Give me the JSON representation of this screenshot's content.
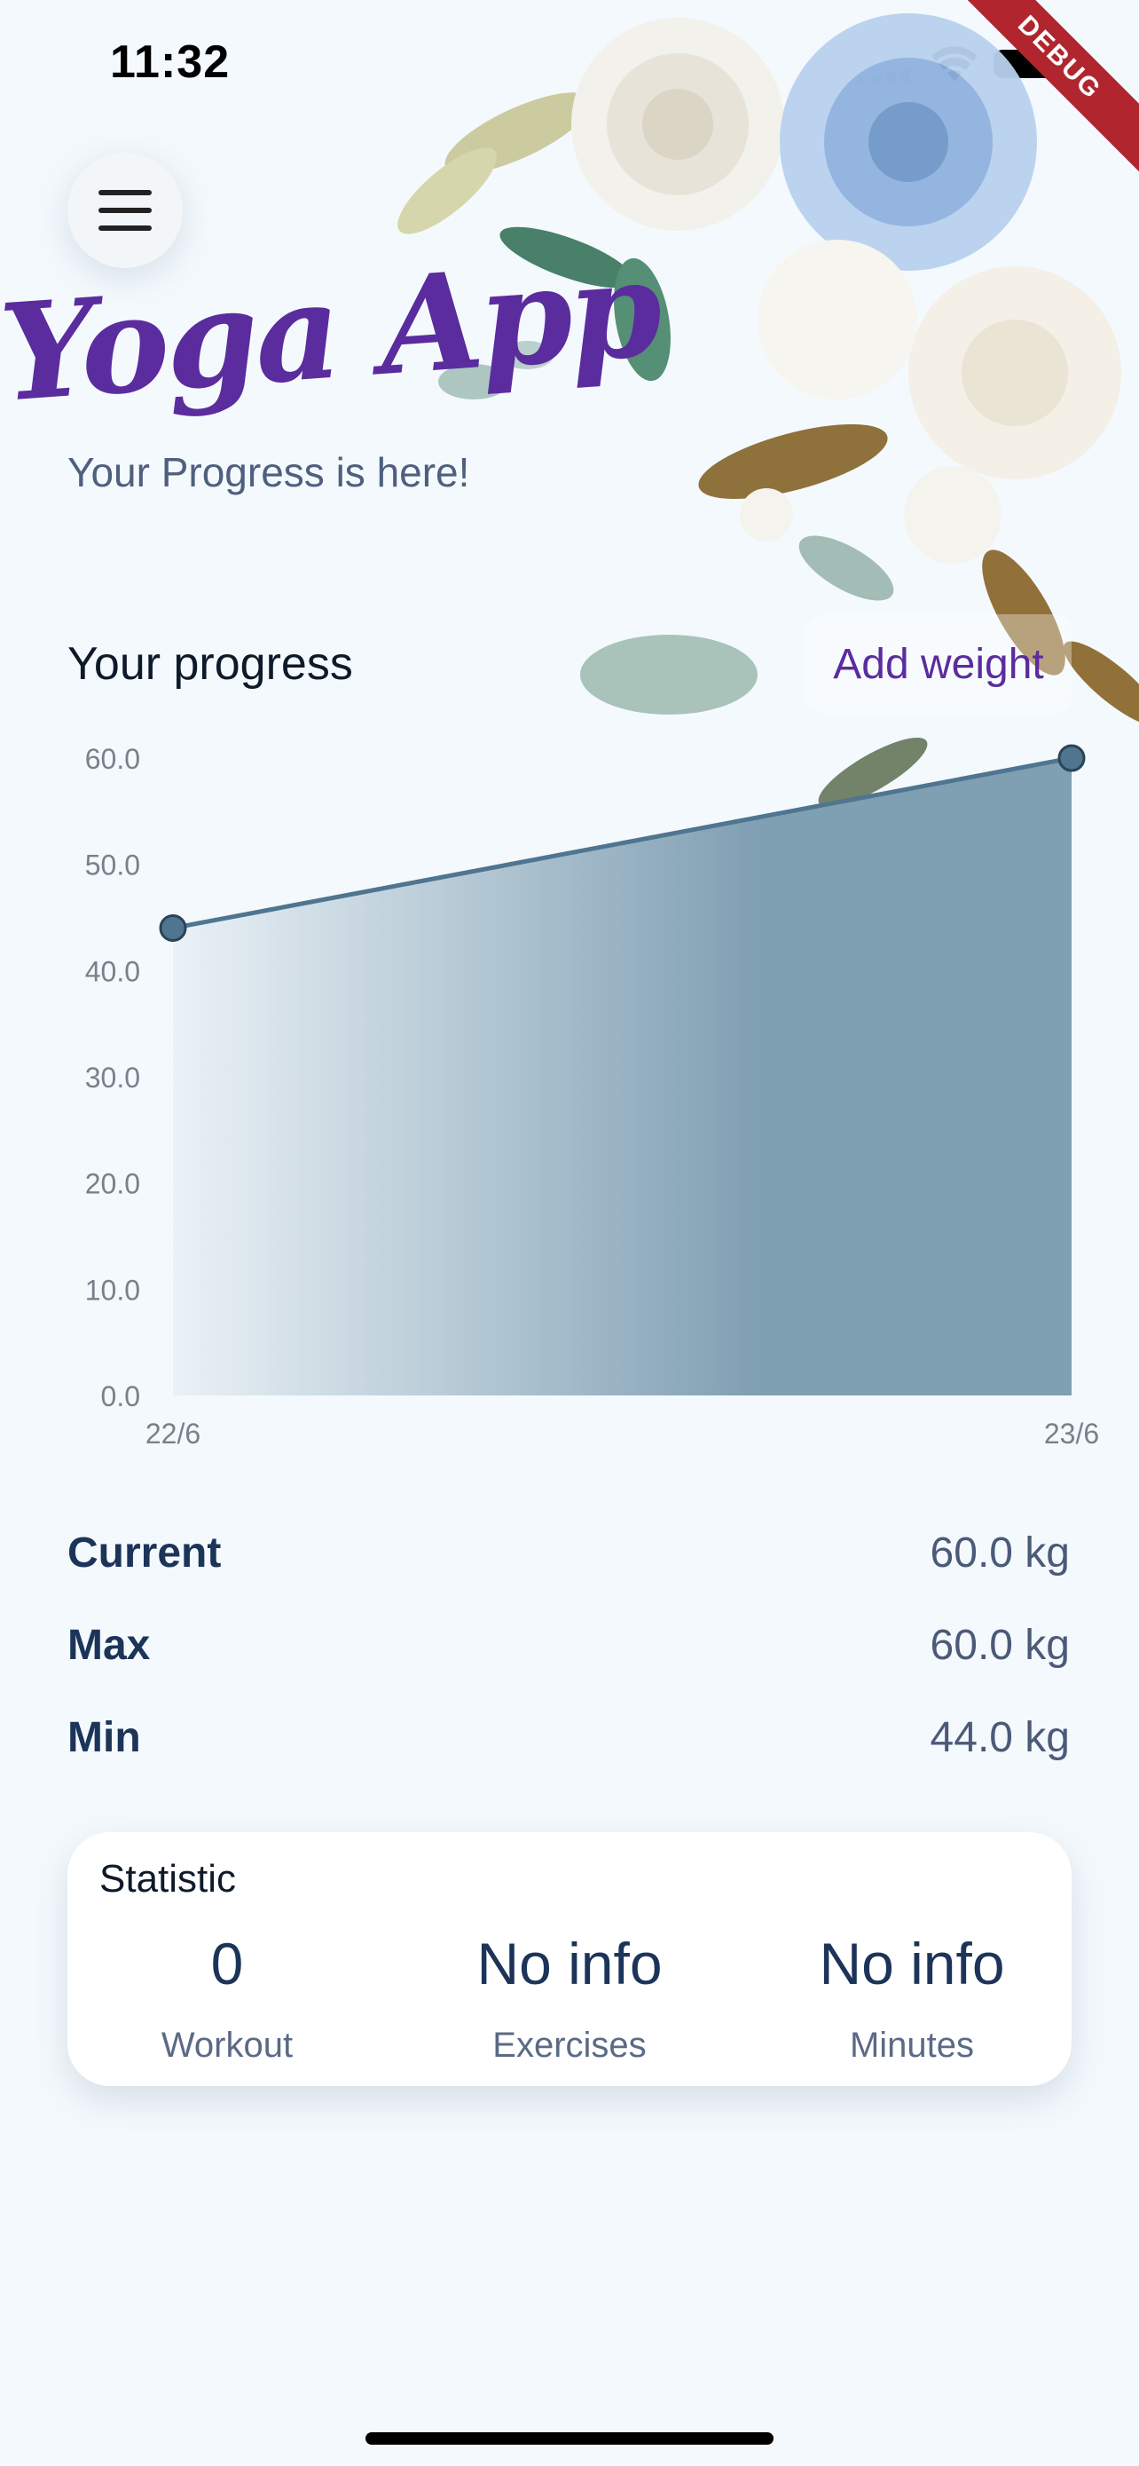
{
  "status_bar": {
    "time": "11:32"
  },
  "debug_label": "DEBUG",
  "header": {
    "app_title": "Yoga App",
    "subtitle": "Your Progress is here!"
  },
  "progress": {
    "title": "Your progress",
    "add_weight_label": "Add weight"
  },
  "chart_data": {
    "type": "area",
    "x": [
      "22/6",
      "23/6"
    ],
    "series": [
      {
        "values": [
          44.0,
          60.0
        ]
      }
    ],
    "y_ticks": [
      "60.0",
      "50.0",
      "40.0",
      "30.0",
      "20.0",
      "10.0",
      "0.0"
    ],
    "ylim": [
      0,
      60
    ],
    "line_color": "#4f7590",
    "fill_color": "#7f9fb2",
    "grid": false
  },
  "stats": [
    {
      "label": "Current",
      "value": "60.0 kg"
    },
    {
      "label": "Max",
      "value": "60.0 kg"
    },
    {
      "label": "Min",
      "value": "44.0 kg"
    }
  ],
  "statistic_card": {
    "title": "Statistic",
    "columns": [
      {
        "value": "0",
        "caption": "Workout"
      },
      {
        "value": "No info",
        "caption": "Exercises"
      },
      {
        "value": "No info",
        "caption": "Minutes"
      }
    ]
  },
  "colors": {
    "accent": "#5b2c9e",
    "text_dark": "#1c3458",
    "background": "#f4f9fd"
  }
}
